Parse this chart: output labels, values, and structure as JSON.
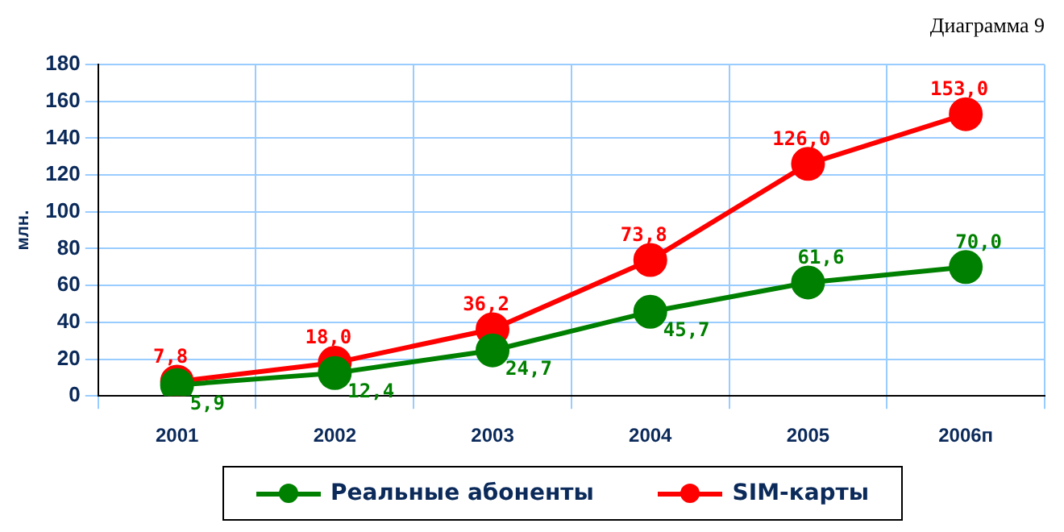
{
  "chart_data": {
    "type": "line",
    "title": "Диаграмма 9",
    "ylabel": "млн.",
    "categories": [
      "2001",
      "2002",
      "2003",
      "2004",
      "2005",
      "2006п"
    ],
    "series": [
      {
        "name": "Реальные абоненты",
        "color": "#008000",
        "values": [
          5.9,
          12.4,
          24.7,
          45.7,
          61.6,
          70.0
        ],
        "value_labels": [
          "5,9",
          "12,4",
          "24,7",
          "45,7",
          "61,6",
          "70,0"
        ]
      },
      {
        "name": "SIM-карты",
        "color": "#ff0000",
        "values": [
          7.8,
          18.0,
          36.2,
          73.8,
          126.0,
          153.0
        ],
        "value_labels": [
          "7,8",
          "18,0",
          "36,2",
          "73,8",
          "126,0",
          "153,0"
        ]
      }
    ],
    "ylim": [
      0,
      180
    ],
    "yticks": [
      0,
      20,
      40,
      60,
      80,
      100,
      120,
      140,
      160,
      180
    ],
    "grid": true,
    "legend": "bottom",
    "marker": "circle",
    "line_style": "solid"
  }
}
